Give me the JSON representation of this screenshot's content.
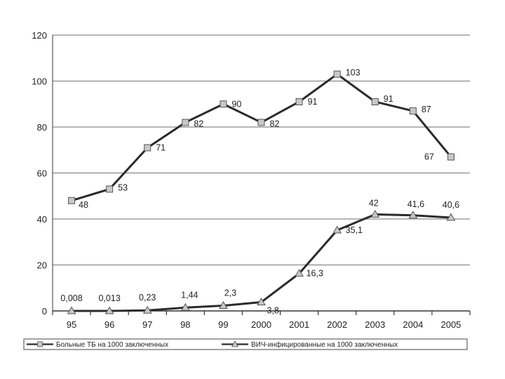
{
  "chart_data": {
    "type": "line",
    "categories": [
      "95",
      "96",
      "97",
      "98",
      "99",
      "2000",
      "2001",
      "2002",
      "2003",
      "2004",
      "2005"
    ],
    "ylim": [
      0,
      120
    ],
    "yticks": [
      "0",
      "20",
      "40",
      "60",
      "80",
      "100",
      "120"
    ],
    "grid": true,
    "legend_position": "bottom",
    "series": [
      {
        "name": "Больные ТБ на 1000 заключенных",
        "marker": "square",
        "values": [
          48,
          53,
          71,
          82,
          90,
          82,
          91,
          103,
          91,
          87,
          67
        ],
        "labels": [
          "48",
          "53",
          "71",
          "82",
          "90",
          "82",
          "91",
          "103",
          "91",
          "87",
          "67"
        ]
      },
      {
        "name": "ВИЧ-инфицированные на 1000 заключенных",
        "marker": "triangle",
        "values": [
          0.008,
          0.013,
          0.23,
          1.44,
          2.3,
          3.8,
          16.3,
          35.1,
          42,
          41.6,
          40.6
        ],
        "labels": [
          "0,008",
          "0,013",
          "0,23",
          "1,44",
          "2,3",
          "3,8",
          "16,3",
          "35,1",
          "42",
          "41,6",
          "40,6"
        ]
      }
    ],
    "colors": {
      "line": "#2b2b2b",
      "marker_fill": "#c8c8c8",
      "grid": "#8a8a8a"
    }
  }
}
